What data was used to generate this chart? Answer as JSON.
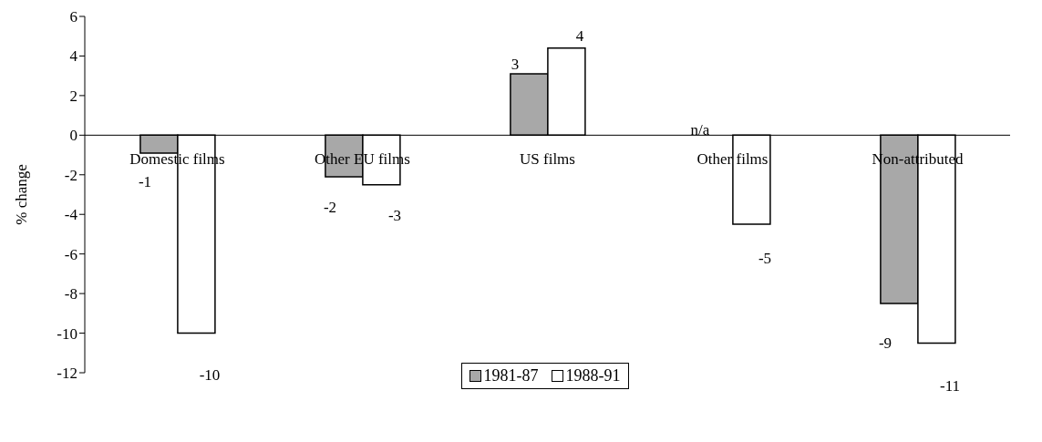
{
  "chart_data": {
    "type": "bar",
    "ylabel": "% change",
    "categories": [
      "Domestic films",
      "Other EU films",
      "US films",
      "Other films",
      "Non-attributed"
    ],
    "series": [
      {
        "name": "1981-87",
        "color": "#a8a8a8",
        "values": [
          -0.9,
          -2.1,
          3.1,
          null,
          -8.5
        ],
        "value_labels": [
          "-1",
          "-2",
          "3",
          "n/a",
          "-9"
        ]
      },
      {
        "name": "1988-91",
        "color": "#ffffff",
        "values": [
          -10,
          -2.5,
          4.4,
          -4.5,
          -10.5
        ],
        "value_labels": [
          "-10",
          "-3",
          "4",
          "-5",
          "-11"
        ]
      }
    ],
    "ylim": [
      -12,
      6
    ],
    "yticks": [
      -12,
      -10,
      -8,
      -6,
      -4,
      -2,
      0,
      2,
      4,
      6
    ],
    "grid": false,
    "legend": "bottom"
  }
}
